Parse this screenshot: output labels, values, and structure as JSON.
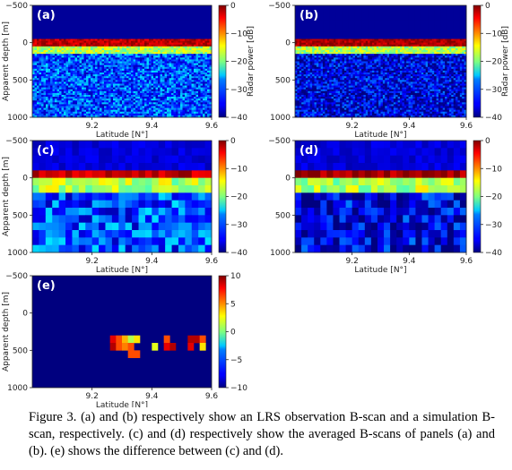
{
  "caption": "Figure 3. (a) and (b) respectively show an LRS observation B-scan and a simulation B-scan, respectively. (c) and (d) respectively show the averaged B-scans of panels (a) and (b). (e) shows the difference between (c) and (d).",
  "chart_data": [
    {
      "panel": "(a)",
      "type": "heatmap",
      "xlabel": "Latitude [N°]",
      "ylabel": "Apparent depth [m]",
      "xlim": [
        9.0,
        9.6
      ],
      "ylim": [
        -500,
        1000
      ],
      "xticks": [
        "9.2",
        "9.4",
        "9.6"
      ],
      "yticks": [
        "-500",
        "0",
        "500",
        "1000"
      ],
      "colorbar": {
        "label": "Radar power [dB]",
        "range": [
          -40,
          0
        ],
        "ticks": [
          "0",
          "-10",
          "-20",
          "-30",
          "-40"
        ]
      },
      "description_values": {
        "near_surface_peak_db": -3,
        "deep_level_db": -33
      },
      "surface_depth_m": 0
    },
    {
      "panel": "(b)",
      "type": "heatmap",
      "xlabel": "Latitude [N°]",
      "ylabel": "",
      "xlim": [
        9.0,
        9.6
      ],
      "ylim": [
        -500,
        1000
      ],
      "xticks": [
        "9.2",
        "9.4",
        "9.6"
      ],
      "yticks": [
        "-500",
        "0",
        "500",
        "1000"
      ],
      "colorbar": {
        "label": "Radar power [dB]",
        "range": [
          -40,
          0
        ],
        "ticks": [
          "0",
          "-10",
          "-20",
          "-30",
          "-40"
        ]
      },
      "surface_depth_m": 0
    },
    {
      "panel": "(c)",
      "type": "heatmap",
      "xlabel": "Latitude [N°]",
      "ylabel": "Apparent depth [m]",
      "xlim": [
        9.0,
        9.6
      ],
      "ylim": [
        -500,
        1000
      ],
      "xticks": [
        "9.2",
        "9.4",
        "9.6"
      ],
      "yticks": [
        "-500",
        "0",
        "500",
        "1000"
      ],
      "colorbar": {
        "label": "",
        "range": [
          -40,
          0
        ],
        "ticks": [
          "0",
          "-10",
          "-20",
          "-30",
          "-40"
        ]
      },
      "grid_cells": [
        27,
        15
      ]
    },
    {
      "panel": "(d)",
      "type": "heatmap",
      "xlabel": "Latitude [N°]",
      "ylabel": "",
      "xlim": [
        9.0,
        9.6
      ],
      "ylim": [
        -500,
        1000
      ],
      "xticks": [
        "9.2",
        "9.4",
        "9.6"
      ],
      "yticks": [
        "-500",
        "0",
        "500",
        "1000"
      ],
      "colorbar": {
        "label": "",
        "range": [
          -40,
          0
        ],
        "ticks": [
          "0",
          "-10",
          "-20",
          "-30",
          "-40"
        ]
      },
      "grid_cells": [
        27,
        15
      ]
    },
    {
      "panel": "(e)",
      "type": "heatmap",
      "xlabel": "Latitude [N°]",
      "ylabel": "Apparent depth [m]",
      "xlim": [
        9.0,
        9.6
      ],
      "ylim": [
        -500,
        1000
      ],
      "xticks": [
        "9.2",
        "9.4",
        "9.6"
      ],
      "yticks": [
        "-500",
        "0",
        "500",
        "1000"
      ],
      "colorbar": {
        "label": "",
        "range": [
          -10,
          10
        ],
        "ticks": [
          "10",
          "5",
          "0",
          "-5",
          "-10"
        ]
      },
      "background_value": -10,
      "nonzero_cells": [
        {
          "lat": 9.27,
          "depth": 350,
          "value": 8
        },
        {
          "lat": 9.29,
          "depth": 350,
          "value": 6
        },
        {
          "lat": 9.31,
          "depth": 350,
          "value": 4
        },
        {
          "lat": 9.33,
          "depth": 350,
          "value": 1
        },
        {
          "lat": 9.35,
          "depth": 350,
          "value": 3
        },
        {
          "lat": 9.27,
          "depth": 450,
          "value": 9
        },
        {
          "lat": 9.29,
          "depth": 450,
          "value": 6
        },
        {
          "lat": 9.31,
          "depth": 450,
          "value": 5
        },
        {
          "lat": 9.33,
          "depth": 450,
          "value": 6
        },
        {
          "lat": 9.33,
          "depth": 550,
          "value": 6
        },
        {
          "lat": 9.35,
          "depth": 550,
          "value": 6
        },
        {
          "lat": 9.41,
          "depth": 450,
          "value": 2
        },
        {
          "lat": 9.45,
          "depth": 350,
          "value": 6
        },
        {
          "lat": 9.45,
          "depth": 450,
          "value": 8
        },
        {
          "lat": 9.47,
          "depth": 450,
          "value": 9
        },
        {
          "lat": 9.53,
          "depth": 350,
          "value": 9
        },
        {
          "lat": 9.53,
          "depth": 450,
          "value": 8
        },
        {
          "lat": 9.55,
          "depth": 350,
          "value": 9
        },
        {
          "lat": 9.57,
          "depth": 350,
          "value": 6
        },
        {
          "lat": 9.57,
          "depth": 450,
          "value": 3
        }
      ]
    }
  ]
}
